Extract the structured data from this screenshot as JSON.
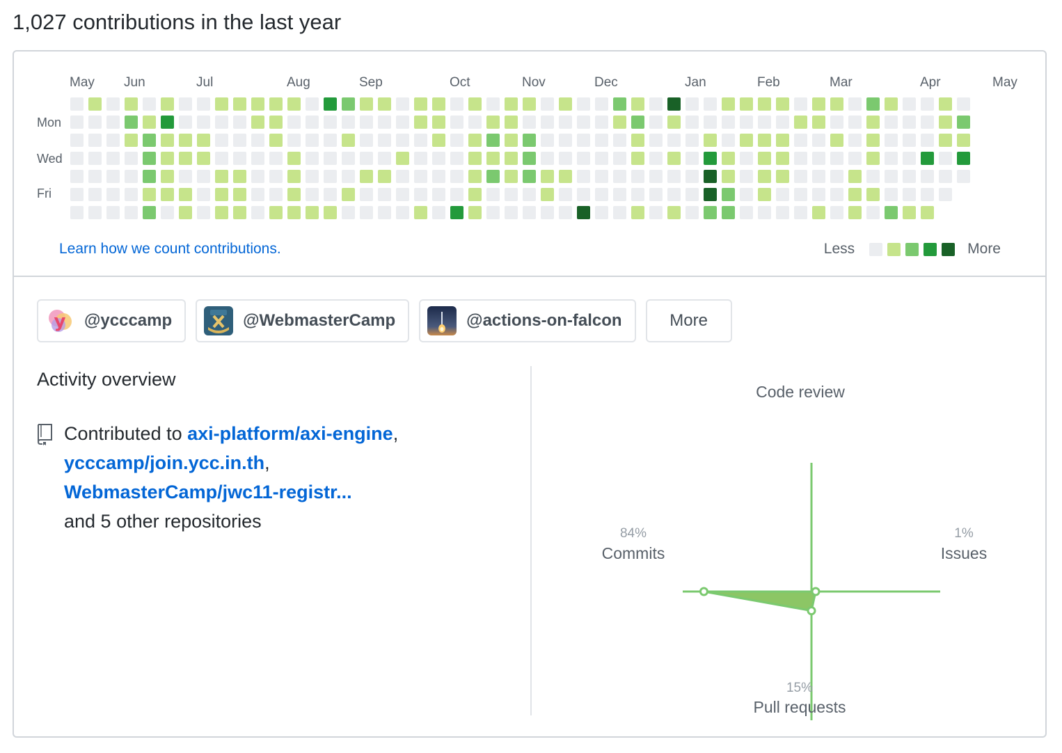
{
  "heading": "1,027 contributions in the last year",
  "calendar": {
    "months": [
      "May",
      "Jun",
      "Jul",
      "Aug",
      "Sep",
      "Oct",
      "Nov",
      "Dec",
      "Jan",
      "Feb",
      "Mar",
      "Apr",
      "May"
    ],
    "weekdays": [
      "Mon",
      "Wed",
      "Fri"
    ],
    "colors": [
      "#ebedf0",
      "#c6e48b",
      "#7bc96f",
      "#239a3b",
      "#196127"
    ],
    "weeks": [
      [
        0,
        0,
        0,
        0,
        0,
        0,
        0
      ],
      [
        1,
        0,
        0,
        0,
        0,
        0,
        0
      ],
      [
        0,
        0,
        0,
        0,
        0,
        0,
        0
      ],
      [
        1,
        2,
        1,
        0,
        0,
        0,
        0
      ],
      [
        0,
        1,
        2,
        2,
        2,
        1,
        2
      ],
      [
        1,
        3,
        1,
        1,
        1,
        1,
        0
      ],
      [
        0,
        0,
        1,
        1,
        0,
        1,
        1
      ],
      [
        0,
        0,
        1,
        1,
        0,
        0,
        0
      ],
      [
        1,
        0,
        0,
        0,
        1,
        1,
        1
      ],
      [
        1,
        0,
        0,
        0,
        1,
        1,
        1
      ],
      [
        1,
        1,
        0,
        0,
        0,
        0,
        0
      ],
      [
        1,
        1,
        1,
        0,
        0,
        0,
        1
      ],
      [
        1,
        0,
        0,
        1,
        1,
        1,
        1
      ],
      [
        0,
        0,
        0,
        0,
        0,
        0,
        1
      ],
      [
        3,
        0,
        0,
        0,
        0,
        0,
        1
      ],
      [
        2,
        0,
        1,
        0,
        0,
        1,
        0
      ],
      [
        1,
        0,
        0,
        0,
        1,
        0,
        0
      ],
      [
        1,
        0,
        0,
        0,
        1,
        0,
        0
      ],
      [
        0,
        0,
        0,
        1,
        0,
        0,
        0
      ],
      [
        1,
        1,
        0,
        0,
        0,
        0,
        1
      ],
      [
        1,
        1,
        1,
        0,
        0,
        0,
        0
      ],
      [
        0,
        0,
        0,
        0,
        0,
        0,
        3
      ],
      [
        1,
        0,
        1,
        1,
        1,
        1,
        1
      ],
      [
        0,
        1,
        2,
        1,
        2,
        0,
        0
      ],
      [
        1,
        1,
        1,
        1,
        1,
        0,
        0
      ],
      [
        1,
        0,
        2,
        2,
        2,
        0,
        0
      ],
      [
        0,
        0,
        0,
        0,
        1,
        1,
        0
      ],
      [
        1,
        0,
        0,
        0,
        1,
        0,
        0
      ],
      [
        0,
        0,
        0,
        0,
        0,
        0,
        4
      ],
      [
        0,
        0,
        0,
        0,
        0,
        0,
        0
      ],
      [
        2,
        1,
        0,
        0,
        0,
        0,
        0
      ],
      [
        1,
        2,
        1,
        1,
        0,
        0,
        1
      ],
      [
        0,
        0,
        0,
        0,
        0,
        0,
        0
      ],
      [
        4,
        1,
        0,
        1,
        0,
        0,
        1
      ],
      [
        0,
        0,
        0,
        0,
        0,
        0,
        0
      ],
      [
        0,
        0,
        1,
        3,
        4,
        4,
        2
      ],
      [
        1,
        0,
        0,
        1,
        1,
        2,
        2
      ],
      [
        1,
        0,
        1,
        0,
        0,
        0,
        0
      ],
      [
        1,
        0,
        1,
        1,
        1,
        1,
        0
      ],
      [
        1,
        0,
        1,
        1,
        1,
        0,
        0
      ],
      [
        0,
        1,
        0,
        0,
        0,
        0,
        0
      ],
      [
        1,
        1,
        0,
        0,
        0,
        0,
        1
      ],
      [
        1,
        0,
        1,
        0,
        0,
        0,
        0
      ],
      [
        0,
        0,
        0,
        0,
        1,
        1,
        1
      ],
      [
        2,
        1,
        1,
        1,
        0,
        1,
        0
      ],
      [
        1,
        0,
        0,
        0,
        0,
        0,
        2
      ],
      [
        0,
        0,
        0,
        0,
        0,
        0,
        1
      ],
      [
        0,
        0,
        0,
        3,
        0,
        0,
        1
      ],
      [
        1,
        1,
        1,
        0,
        0,
        0,
        -1
      ],
      [
        0,
        2,
        1,
        3,
        0,
        -1,
        -1
      ]
    ],
    "learn_link": "Learn how we count contributions.",
    "legend_less": "Less",
    "legend_more": "More"
  },
  "orgs": [
    {
      "name": "@ycccamp",
      "avatar": "ycccamp-logo"
    },
    {
      "name": "@WebmasterCamp",
      "avatar": "jwc-logo"
    },
    {
      "name": "@actions-on-falcon",
      "avatar": "rocket-launch-photo"
    }
  ],
  "more_button": "More",
  "activity": {
    "title": "Activity overview",
    "contributed_prefix": "Contributed to",
    "repos": [
      "axi-platform/axi-engine",
      "ycccamp/join.ycc.in.th",
      "WebmasterCamp/jwc11-registr..."
    ],
    "others": "and 5 other repositories"
  },
  "radar": {
    "accent": "#7bc96f",
    "fill": "#8cc665",
    "code_review": {
      "label": "Code review",
      "pct": ""
    },
    "commits": {
      "label": "Commits",
      "pct": "84%",
      "value": 84
    },
    "issues": {
      "label": "Issues",
      "pct": "1%",
      "value": 1
    },
    "pull_requests": {
      "label": "Pull requests",
      "pct": "15%",
      "value": 15
    }
  }
}
